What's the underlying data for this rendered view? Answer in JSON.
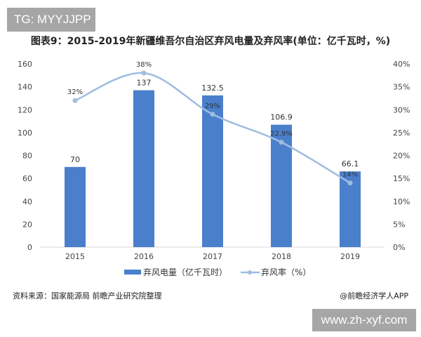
{
  "tag": "TG: MYYJJPP",
  "footer": {
    "source": "资料来源：国家能源局 前瞻产业研究院整理",
    "app": "@前瞻经济学人APP"
  },
  "site": "www.zh-xyf.com",
  "chart_data": {
    "type": "bar+line",
    "title": "图表9：2015-2019年新疆维吾尔自治区弃风电量及弃风率(单位：亿千瓦时，%)",
    "categories": [
      "2015",
      "2016",
      "2017",
      "2018",
      "2019"
    ],
    "series": [
      {
        "name": "弃风电量（亿千瓦时）",
        "type": "bar",
        "axis": "left",
        "values": [
          70,
          137,
          132.5,
          106.9,
          66.1
        ],
        "labels": [
          "70",
          "137",
          "132.5",
          "106.9",
          "66.1"
        ],
        "color": "#4a7fcc"
      },
      {
        "name": "弃风率（%）",
        "type": "line",
        "axis": "right",
        "values": [
          32,
          38,
          29,
          22.9,
          14
        ],
        "labels": [
          "32%",
          "38%",
          "29%",
          "22.9%",
          "14%"
        ],
        "color": "#9ebde0"
      }
    ],
    "left_axis": {
      "ylim": [
        0,
        160
      ],
      "ticks": [
        "0",
        "20",
        "40",
        "60",
        "80",
        "100",
        "120",
        "140",
        "160"
      ]
    },
    "right_axis": {
      "ylim": [
        0,
        40
      ],
      "ticks": [
        "0%",
        "5%",
        "10%",
        "15%",
        "20%",
        "25%",
        "30%",
        "35%",
        "40%"
      ]
    },
    "grid": false,
    "legend": "bottom"
  }
}
